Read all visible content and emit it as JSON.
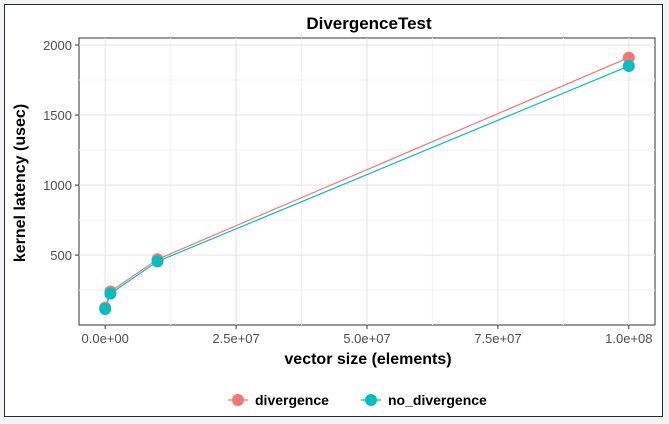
{
  "chart_data": {
    "type": "line",
    "title": "DivergenceTest",
    "xlabel": "vector size (elements)",
    "ylabel": "kernel latency (usec)",
    "xlim": [
      -5000000,
      105000000
    ],
    "ylim": [
      1,
      2050
    ],
    "x_ticks": [
      0,
      25000000,
      50000000,
      75000000,
      100000000
    ],
    "x_tick_labels": [
      "0.0e+00",
      "2.5e+07",
      "5.0e+07",
      "7.5e+07",
      "1.0e+08"
    ],
    "y_ticks": [
      500,
      1000,
      1500,
      2000
    ],
    "y_tick_labels": [
      "500",
      "1000",
      "1500",
      "2000"
    ],
    "grid": true,
    "legend_position": "bottom",
    "series": [
      {
        "name": "divergence",
        "color": "#f8766d",
        "x": [
          0,
          1000000,
          10000000,
          100000000
        ],
        "y": [
          125,
          240,
          470,
          1910
        ]
      },
      {
        "name": "no_divergence",
        "color": "#00bfc4",
        "x": [
          0,
          1000000,
          10000000,
          100000000
        ],
        "y": [
          115,
          225,
          455,
          1850
        ]
      }
    ]
  }
}
